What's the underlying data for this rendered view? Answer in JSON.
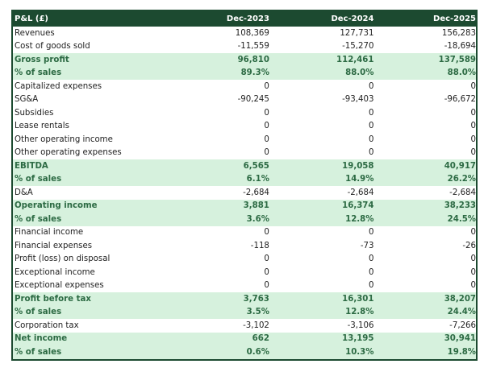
{
  "header": {
    "title": "P&L (£)",
    "columns": [
      "Dec-2023",
      "Dec-2024",
      "Dec-2025"
    ]
  },
  "colors": {
    "header_bg": "#1c4a30",
    "highlight_bg": "#d6f1dd",
    "highlight_text": "#2c6a43"
  },
  "rows": [
    {
      "label": "Revenues",
      "values": [
        "108,369",
        "127,731",
        "156,283"
      ],
      "highlight": false
    },
    {
      "label": "Cost of goods sold",
      "values": [
        "-11,559",
        "-15,270",
        "-18,694"
      ],
      "highlight": false
    },
    {
      "label": "Gross profit",
      "values": [
        "96,810",
        "112,461",
        "137,589"
      ],
      "highlight": true
    },
    {
      "label": "% of sales",
      "values": [
        "89.3%",
        "88.0%",
        "88.0%"
      ],
      "highlight": true
    },
    {
      "label": "Capitalized expenses",
      "values": [
        "0",
        "0",
        "0"
      ],
      "highlight": false
    },
    {
      "label": "SG&A",
      "values": [
        "-90,245",
        "-93,403",
        "-96,672"
      ],
      "highlight": false
    },
    {
      "label": "Subsidies",
      "values": [
        "0",
        "0",
        "0"
      ],
      "highlight": false
    },
    {
      "label": "Lease rentals",
      "values": [
        "0",
        "0",
        "0"
      ],
      "highlight": false
    },
    {
      "label": "Other operating income",
      "values": [
        "0",
        "0",
        "0"
      ],
      "highlight": false
    },
    {
      "label": "Other operating expenses",
      "values": [
        "0",
        "0",
        "0"
      ],
      "highlight": false
    },
    {
      "label": "EBITDA",
      "values": [
        "6,565",
        "19,058",
        "40,917"
      ],
      "highlight": true
    },
    {
      "label": "% of sales",
      "values": [
        "6.1%",
        "14.9%",
        "26.2%"
      ],
      "highlight": true
    },
    {
      "label": "D&A",
      "values": [
        "-2,684",
        "-2,684",
        "-2,684"
      ],
      "highlight": false
    },
    {
      "label": "Operating income",
      "values": [
        "3,881",
        "16,374",
        "38,233"
      ],
      "highlight": true
    },
    {
      "label": "% of sales",
      "values": [
        "3.6%",
        "12.8%",
        "24.5%"
      ],
      "highlight": true
    },
    {
      "label": "Financial income",
      "values": [
        "0",
        "0",
        "0"
      ],
      "highlight": false
    },
    {
      "label": "Financial expenses",
      "values": [
        "-118",
        "-73",
        "-26"
      ],
      "highlight": false
    },
    {
      "label": "Profit (loss) on disposal",
      "values": [
        "0",
        "0",
        "0"
      ],
      "highlight": false
    },
    {
      "label": "Exceptional income",
      "values": [
        "0",
        "0",
        "0"
      ],
      "highlight": false
    },
    {
      "label": "Exceptional expenses",
      "values": [
        "0",
        "0",
        "0"
      ],
      "highlight": false
    },
    {
      "label": "Profit before tax",
      "values": [
        "3,763",
        "16,301",
        "38,207"
      ],
      "highlight": true
    },
    {
      "label": "% of sales",
      "values": [
        "3.5%",
        "12.8%",
        "24.4%"
      ],
      "highlight": true
    },
    {
      "label": "Corporation tax",
      "values": [
        "-3,102",
        "-3,106",
        "-7,266"
      ],
      "highlight": false
    },
    {
      "label": "Net income",
      "values": [
        "662",
        "13,195",
        "30,941"
      ],
      "highlight": true
    },
    {
      "label": "% of sales",
      "values": [
        "0.6%",
        "10.3%",
        "19.8%"
      ],
      "highlight": true
    }
  ]
}
